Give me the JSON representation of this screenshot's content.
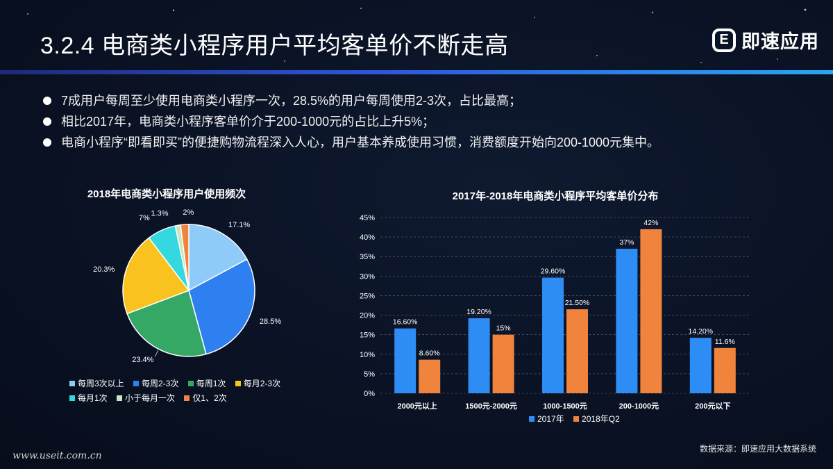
{
  "header": {
    "title": "3.2.4  电商类小程序用户平均客单价不断走高",
    "brand": "即速应用",
    "brand_logo": "E"
  },
  "bullets": [
    "7成用户每周至少使用电商类小程序一次，28.5%的用户每周使用2-3次，占比最高；",
    "相比2017年，电商类小程序客单价介于200-1000元的占比上升5%；",
    "电商小程序“即看即买”的便捷购物流程深入人心，用户基本养成使用习惯，消费额度开始向200-1000元集中。"
  ],
  "chart_data": [
    {
      "type": "pie",
      "title": "2018年电商类小程序用户使用频次",
      "slices": [
        {
          "name": "每周3次以上",
          "value": 17.1,
          "label": "17.1%",
          "color": "#8ecbf8"
        },
        {
          "name": "每周2-3次",
          "value": 28.5,
          "label": "28.5%",
          "color": "#2e7ff0"
        },
        {
          "name": "每周1次",
          "value": 23.4,
          "label": "23.4%",
          "color": "#35a866"
        },
        {
          "name": "每月2-3次",
          "value": 20.3,
          "label": "20.3%",
          "color": "#f9c21e"
        },
        {
          "name": "每月1次",
          "value": 7.0,
          "label": "7%",
          "color": "#35d8e0"
        },
        {
          "name": "小于每月一次",
          "value": 1.3,
          "label": "1.3%",
          "color": "#c9e6c0"
        },
        {
          "name": "仅1、2次",
          "value": 2.0,
          "label": "2%",
          "color": "#f0843c"
        }
      ],
      "legend_position": "bottom"
    },
    {
      "type": "bar",
      "title": "2017年-2018年电商类小程序平均客单价分布",
      "categories": [
        "2000元以上",
        "1500元-2000元",
        "1000-1500元",
        "200-1000元",
        "200元以下"
      ],
      "series": [
        {
          "name": "2017年",
          "values": [
            16.6,
            19.2,
            29.6,
            37,
            14.2
          ],
          "labels": [
            "16.60%",
            "19.20%",
            "29.60%",
            "37%",
            "14.20%"
          ],
          "color": "#2e8df5"
        },
        {
          "name": "2018年Q2",
          "values": [
            8.6,
            15,
            21.5,
            42,
            11.6
          ],
          "labels": [
            "8.60%",
            "15%",
            "21.50%",
            "42%",
            "11.6%"
          ],
          "color": "#f0843c"
        }
      ],
      "yticks": [
        "0%",
        "5%",
        "10%",
        "15%",
        "20%",
        "25%",
        "30%",
        "35%",
        "40%",
        "45%"
      ],
      "ylim": [
        0,
        45
      ],
      "grid": true,
      "legend_position": "bottom"
    }
  ],
  "footer": {
    "source": "数据来源：即速应用大数据系统",
    "watermark": "www.useit.com.cn"
  }
}
